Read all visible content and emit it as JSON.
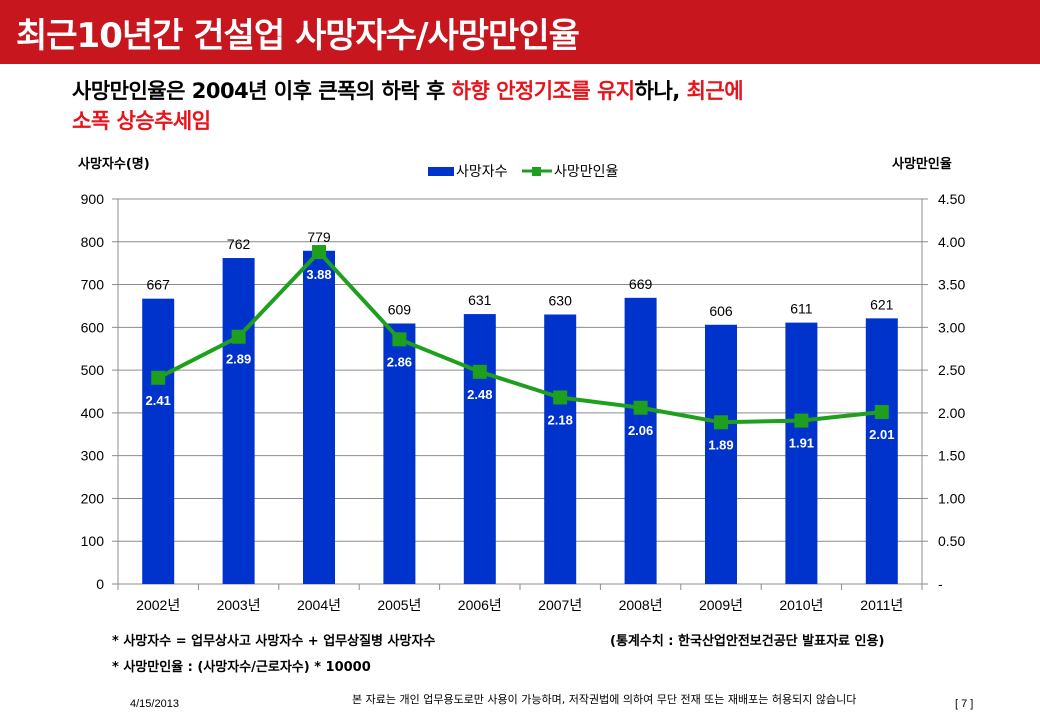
{
  "slide": {
    "title": "최근10년간 건설업 사망자수/사망만인율",
    "headline": {
      "part1": "사망만인율은 2004년 이후 큰폭의 하락 후 ",
      "part2_red": "하향 안정기조를 유지",
      "part3": "하나, ",
      "part4_red": "최근에",
      "line2_red": "소폭 상승추세임"
    },
    "notes": {
      "note1": "* 사망자수 = 업무상사고 사망자수 + 업무상질병 사망자수",
      "note2": "* 사망만인율 : (사망자수/근로자수) * 10000",
      "source": "(통계수치 : 한국산업안전보건공단  발표자료 인용)"
    },
    "footer": {
      "date": "4/15/2013",
      "copyright": "본 자료는 개인 업무용도로만 사용이 가능하며, 저작권법에 의하여 무단 전재 또는 재배포는 허용되지 않습니다",
      "page": "[ 7 ]"
    },
    "colors": {
      "title_bg": "#c8161f",
      "accent_red": "#e8141c",
      "bar": "#0033cc",
      "line": "#1ea01e"
    }
  },
  "chart_data": {
    "type": "bar+line",
    "categories": [
      "2002년",
      "2003년",
      "2004년",
      "2005년",
      "2006년",
      "2007년",
      "2008년",
      "2009년",
      "2010년",
      "2011년"
    ],
    "series": [
      {
        "name": "사망자수",
        "type": "bar",
        "axis": "left",
        "values": [
          667,
          762,
          779,
          609,
          631,
          630,
          669,
          606,
          611,
          621
        ],
        "labels": [
          "667",
          "762",
          "779",
          "609",
          "631",
          "630",
          "669",
          "606",
          "611",
          "621"
        ]
      },
      {
        "name": "사망만인율",
        "type": "line",
        "axis": "right",
        "values": [
          2.41,
          2.89,
          3.88,
          2.86,
          2.48,
          2.18,
          2.06,
          1.89,
          1.91,
          2.01
        ],
        "labels": [
          "2.41",
          "2.89",
          "3.88",
          "2.86",
          "2.48",
          "2.18",
          "2.06",
          "1.89",
          "1.91",
          "2.01"
        ]
      }
    ],
    "ylabel_left": "사망자수(명)",
    "ylabel_right": "사망만인율",
    "ylim_left": [
      0,
      900
    ],
    "ylim_right": [
      0,
      4.5
    ],
    "yticks_left": [
      "0",
      "100",
      "200",
      "300",
      "400",
      "500",
      "600",
      "700",
      "800",
      "900"
    ],
    "yticks_right": [
      "-",
      "0.50",
      "1.00",
      "1.50",
      "2.00",
      "2.50",
      "3.00",
      "3.50",
      "4.00",
      "4.50"
    ],
    "grid": true,
    "legend": {
      "position": "top-center",
      "items": [
        "사망자수",
        "사망만인율"
      ]
    }
  }
}
